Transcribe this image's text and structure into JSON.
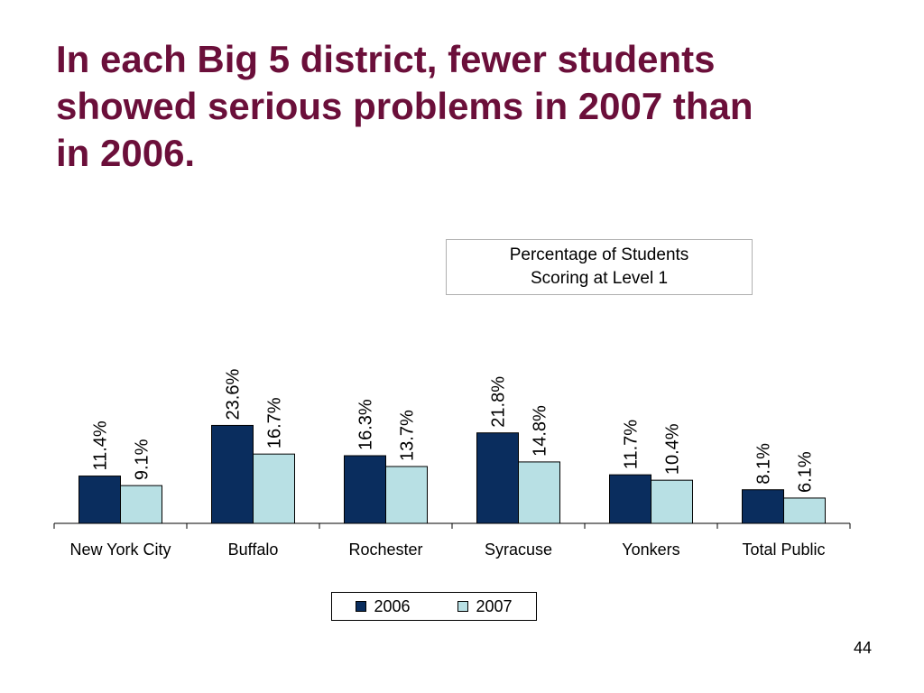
{
  "slide": {
    "title_line1": "In each Big 5 district, fewer students",
    "title_line2": "showed serious problems in 2007 than",
    "title_line3": "in 2006.",
    "note_line1": "Percentage of Students",
    "note_line2": "Scoring at Level 1",
    "page_number": "44"
  },
  "chart_data": {
    "type": "bar",
    "categories": [
      "New York City",
      "Buffalo",
      "Rochester",
      "Syracuse",
      "Yonkers",
      "Total Public"
    ],
    "series": [
      {
        "name": "2006",
        "values": [
          11.4,
          23.6,
          16.3,
          21.8,
          11.7,
          8.1
        ],
        "labels": [
          "11.4%",
          "23.6%",
          "16.3%",
          "21.8%",
          "11.7%",
          "8.1%"
        ],
        "color": "#0a2d5e"
      },
      {
        "name": "2007",
        "values": [
          9.1,
          16.7,
          13.7,
          14.8,
          10.4,
          6.1
        ],
        "labels": [
          "9.1%",
          "16.7%",
          "13.7%",
          "14.8%",
          "10.4%",
          "6.1%"
        ],
        "color": "#b8e0e4"
      }
    ],
    "ylim": [
      0,
      30
    ],
    "legend_position": "bottom",
    "grid": false
  }
}
